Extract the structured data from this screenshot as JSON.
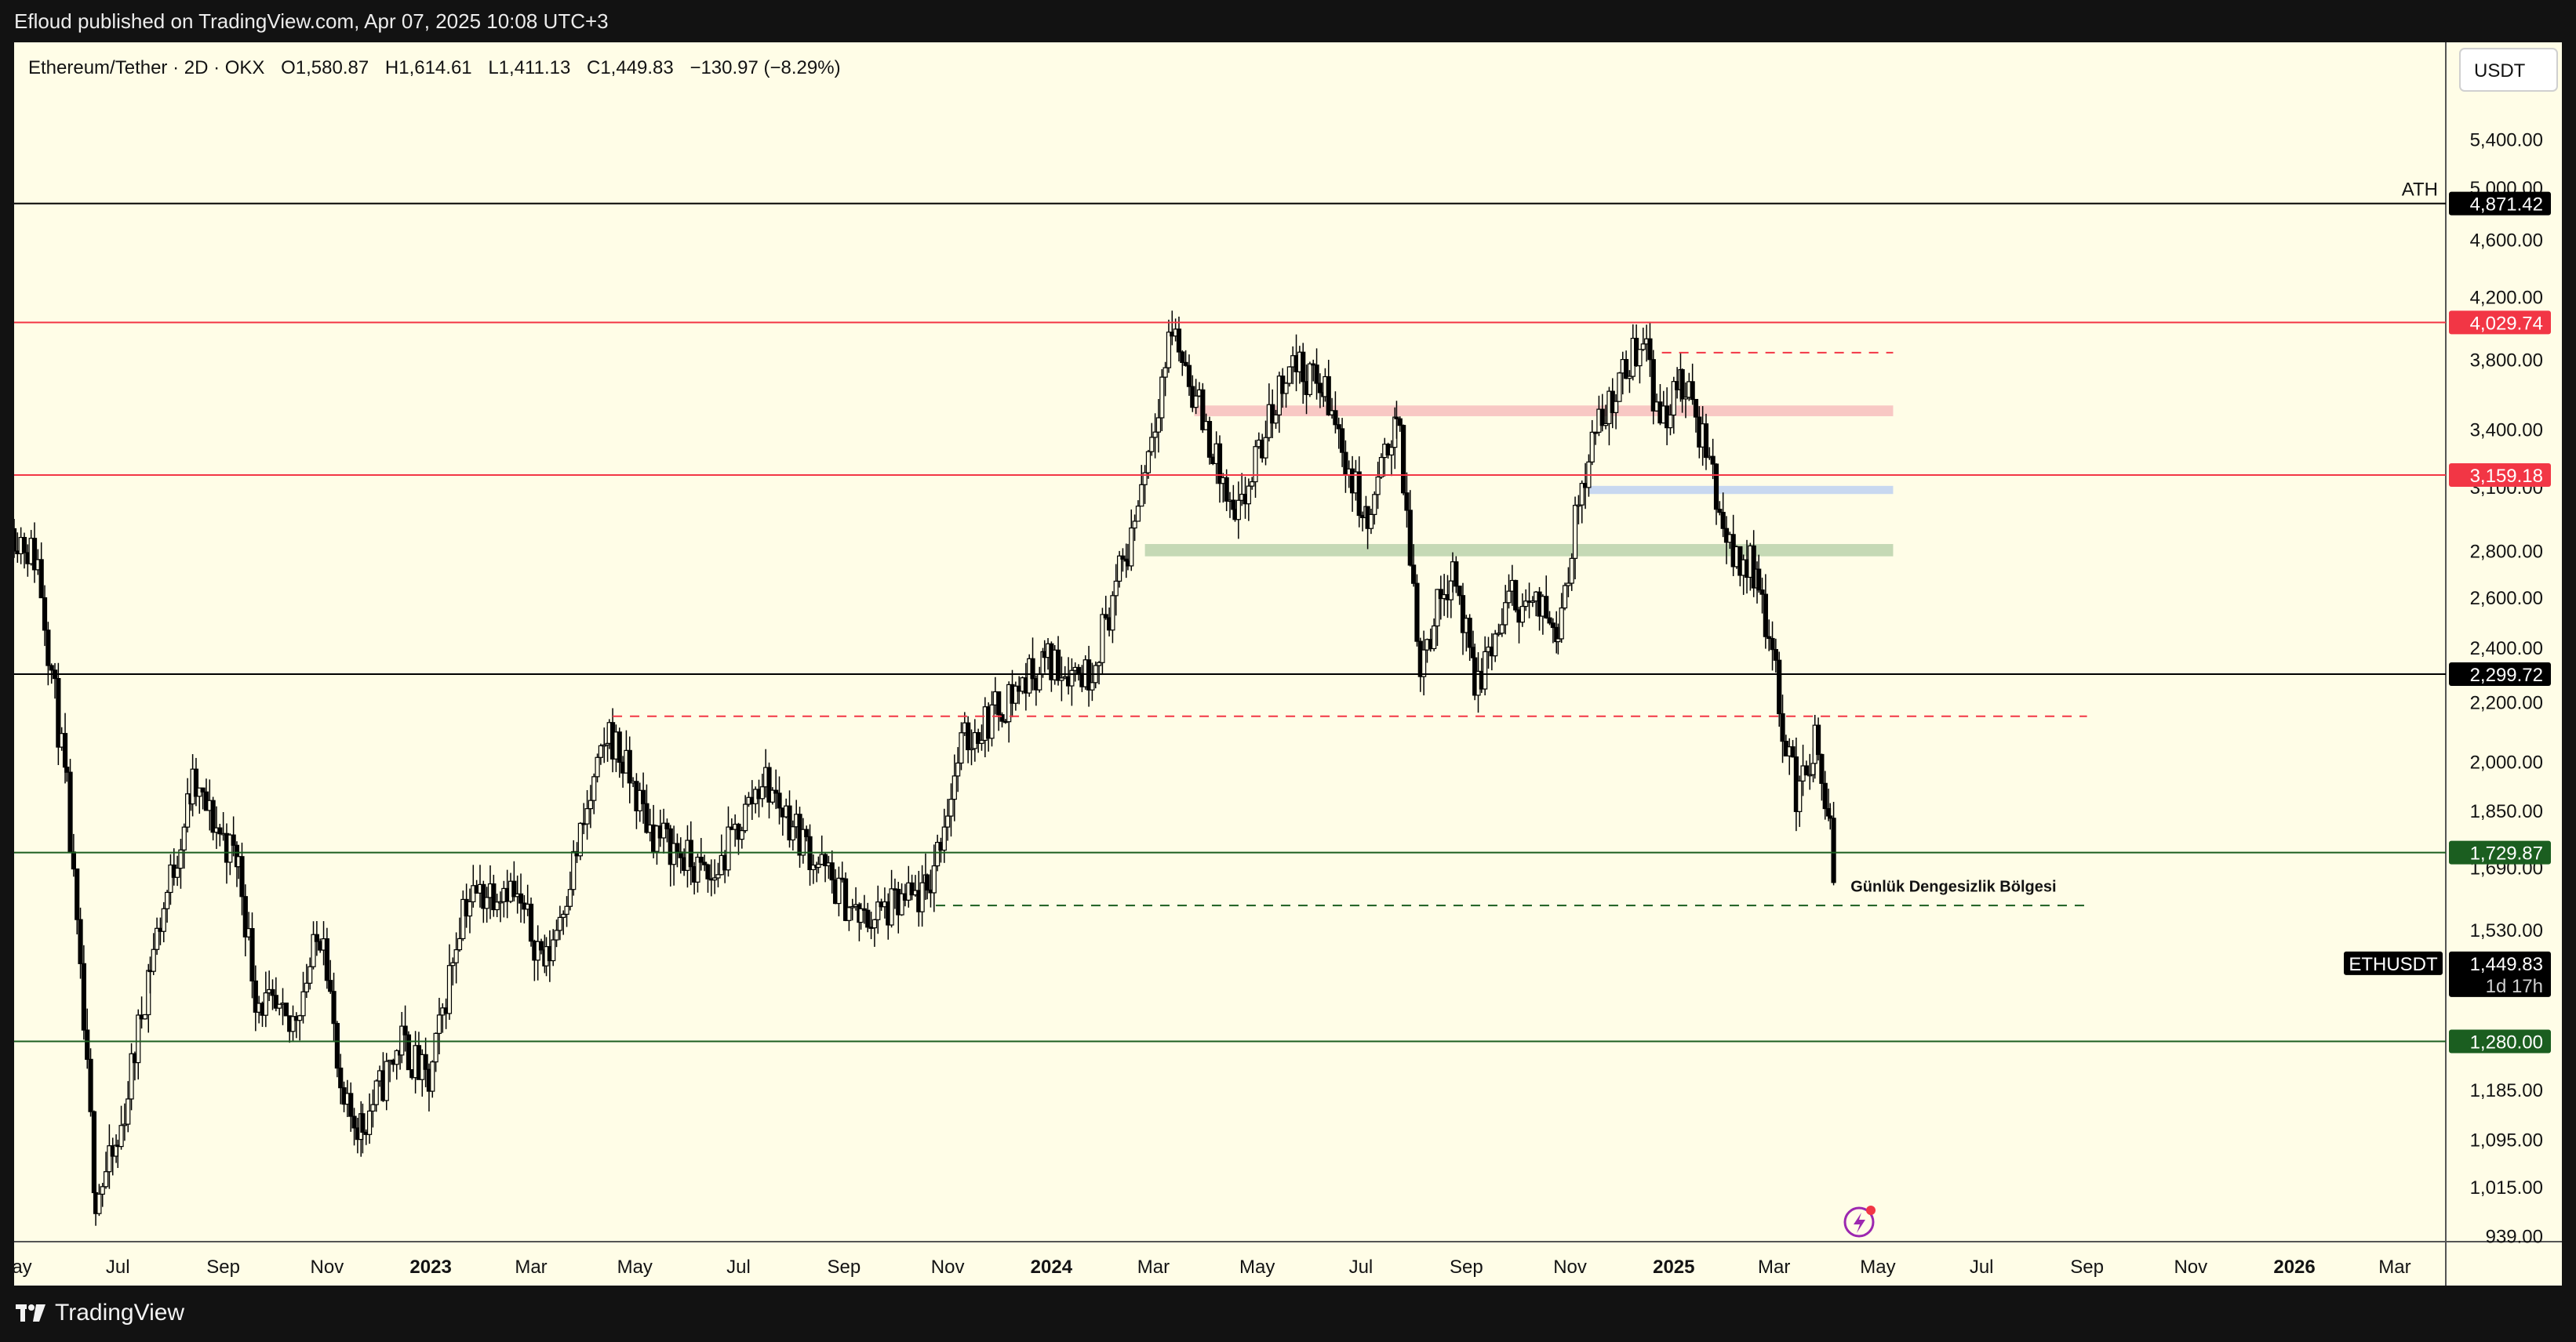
{
  "header": {
    "published": "Efloud published on TradingView.com, Apr 07, 2025 10:08 UTC+3"
  },
  "symbol_bar": {
    "symbol": "Ethereum/Tether · 2D · OKX",
    "open": "O1,580.87",
    "high": "H1,614.61",
    "low": "L1,411.13",
    "close": "C1,449.83",
    "change": "−130.97 (−8.29%)"
  },
  "footer": {
    "brand": "TradingView"
  },
  "colors": {
    "background": "#fffde7",
    "candle": "#000000",
    "red_level": "#f23645",
    "green_level": "#1b5e20",
    "black_level": "#000000",
    "pink_zone": "#f8c8c4",
    "blue_zone": "#c8d8f0",
    "green_zone": "#c5d9b5"
  },
  "chart_data": {
    "type": "candlestick",
    "title": "Ethereum/Tether · 2D · OKX",
    "currency": "USDT",
    "y_scale": "log",
    "ylim": [
      930,
      6300
    ],
    "xlim": [
      "2022-05-01",
      "2026-03-31"
    ],
    "y_ticks": [
      "5,400.00",
      "5,000.00",
      "4,600.00",
      "4,200.00",
      "3,800.00",
      "3,400.00",
      "3,100.00",
      "2,800.00",
      "2,600.00",
      "2,400.00",
      "2,200.00",
      "2,000.00",
      "1,850.00",
      "1,690.00",
      "1,530.00",
      "1,185.00",
      "1,095.00",
      "1,015.00",
      "939.00"
    ],
    "x_ticks": [
      {
        "date": "2022-05-01",
        "label": "May",
        "bold": false
      },
      {
        "date": "2022-07-01",
        "label": "Jul",
        "bold": false
      },
      {
        "date": "2022-09-01",
        "label": "Sep",
        "bold": false
      },
      {
        "date": "2022-11-01",
        "label": "Nov",
        "bold": false
      },
      {
        "date": "2023-01-01",
        "label": "2023",
        "bold": true
      },
      {
        "date": "2023-03-01",
        "label": "Mar",
        "bold": false
      },
      {
        "date": "2023-05-01",
        "label": "May",
        "bold": false
      },
      {
        "date": "2023-07-01",
        "label": "Jul",
        "bold": false
      },
      {
        "date": "2023-09-01",
        "label": "Sep",
        "bold": false
      },
      {
        "date": "2023-11-01",
        "label": "Nov",
        "bold": false
      },
      {
        "date": "2024-01-01",
        "label": "2024",
        "bold": true
      },
      {
        "date": "2024-03-01",
        "label": "Mar",
        "bold": false
      },
      {
        "date": "2024-05-01",
        "label": "May",
        "bold": false
      },
      {
        "date": "2024-07-01",
        "label": "Jul",
        "bold": false
      },
      {
        "date": "2024-09-01",
        "label": "Sep",
        "bold": false
      },
      {
        "date": "2024-11-01",
        "label": "Nov",
        "bold": false
      },
      {
        "date": "2025-01-01",
        "label": "2025",
        "bold": true
      },
      {
        "date": "2025-03-01",
        "label": "Mar",
        "bold": false
      },
      {
        "date": "2025-05-01",
        "label": "May",
        "bold": false
      },
      {
        "date": "2025-07-01",
        "label": "Jul",
        "bold": false
      },
      {
        "date": "2025-09-01",
        "label": "Sep",
        "bold": false
      },
      {
        "date": "2025-11-01",
        "label": "Nov",
        "bold": false
      },
      {
        "date": "2026-01-01",
        "label": "2026",
        "bold": true
      },
      {
        "date": "2026-03-01",
        "label": "Mar",
        "bold": false
      }
    ],
    "levels": [
      {
        "name": "ath",
        "value": 4871.42,
        "label": "4,871.42",
        "color": "#000000",
        "note": "ATH"
      },
      {
        "name": "red-high",
        "value": 4029.74,
        "label": "4,029.74",
        "color": "#f23645"
      },
      {
        "name": "red-mid",
        "value": 3159.18,
        "label": "3,159.18",
        "color": "#f23645"
      },
      {
        "name": "black-mid",
        "value": 2299.72,
        "label": "2,299.72",
        "color": "#000000"
      },
      {
        "name": "green-upper",
        "value": 1729.87,
        "label": "1,729.87",
        "color": "#1b5e20"
      },
      {
        "name": "green-lower",
        "value": 1280.0,
        "label": "1,280.00",
        "color": "#1b5e20"
      }
    ],
    "zones": [
      {
        "name": "pink-zone",
        "from": "2024-03-25",
        "to": "2025-05-10",
        "low": 3470,
        "high": 3530,
        "color": "#f8c8c4"
      },
      {
        "name": "blue-zone",
        "from": "2024-11-12",
        "to": "2025-05-10",
        "low": 3065,
        "high": 3105,
        "color": "#c8d8f0"
      },
      {
        "name": "green-zone",
        "from": "2024-02-25",
        "to": "2025-05-10",
        "low": 2775,
        "high": 2830,
        "color": "#c5d9b5"
      }
    ],
    "dashed_lines": [
      {
        "name": "red-dash-top",
        "from": "2024-12-25",
        "to": "2025-05-10",
        "value": 3840,
        "color": "#f23645"
      },
      {
        "name": "red-dash-2150",
        "from": "2023-04-18",
        "to": "2025-09-01",
        "value": 2150,
        "color": "#f23645"
      },
      {
        "name": "green-dash-1590",
        "from": "2023-10-25",
        "to": "2025-09-01",
        "value": 1590,
        "color": "#1b5e20"
      }
    ],
    "annotation": {
      "text": "Günlük Dengesizlik Bölgesi",
      "date": "2025-04-15",
      "value": 1625
    },
    "current": {
      "symbol": "ETHUSDT",
      "price": 1449.83,
      "price_label": "1,449.83",
      "countdown": "1d 17h"
    },
    "anchors": [
      [
        "2022-05-01",
        2900
      ],
      [
        "2022-05-15",
        2750
      ],
      [
        "2022-06-01",
        1900
      ],
      [
        "2022-06-18",
        1000
      ],
      [
        "2022-07-01",
        1080
      ],
      [
        "2022-07-20",
        1450
      ],
      [
        "2022-08-14",
        1920
      ],
      [
        "2022-09-10",
        1700
      ],
      [
        "2022-09-20",
        1380
      ],
      [
        "2022-10-10",
        1300
      ],
      [
        "2022-10-30",
        1550
      ],
      [
        "2022-11-09",
        1150
      ],
      [
        "2022-11-22",
        1120
      ],
      [
        "2022-12-15",
        1280
      ],
      [
        "2022-12-31",
        1190
      ],
      [
        "2023-01-20",
        1600
      ],
      [
        "2023-02-15",
        1650
      ],
      [
        "2023-03-10",
        1450
      ],
      [
        "2023-04-16",
        2100
      ],
      [
        "2023-05-10",
        1800
      ],
      [
        "2023-06-15",
        1650
      ],
      [
        "2023-07-15",
        1950
      ],
      [
        "2023-08-17",
        1700
      ],
      [
        "2023-09-11",
        1550
      ],
      [
        "2023-10-20",
        1620
      ],
      [
        "2023-11-09",
        2050
      ],
      [
        "2023-12-28",
        2350
      ],
      [
        "2024-01-23",
        2300
      ],
      [
        "2024-02-15",
        2800
      ],
      [
        "2024-03-12",
        4000
      ],
      [
        "2024-04-01",
        3400
      ],
      [
        "2024-04-18",
        2900
      ],
      [
        "2024-05-20",
        3800
      ],
      [
        "2024-06-10",
        3600
      ],
      [
        "2024-07-05",
        2900
      ],
      [
        "2024-07-22",
        3500
      ],
      [
        "2024-08-05",
        2350
      ],
      [
        "2024-08-24",
        2750
      ],
      [
        "2024-09-06",
        2250
      ],
      [
        "2024-09-28",
        2600
      ],
      [
        "2024-10-25",
        2500
      ],
      [
        "2024-11-12",
        3300
      ],
      [
        "2024-12-16",
        4000
      ],
      [
        "2024-12-22",
        3450
      ],
      [
        "2025-01-06",
        3650
      ],
      [
        "2025-01-20",
        3300
      ],
      [
        "2025-02-03",
        2800
      ],
      [
        "2025-02-20",
        2700
      ],
      [
        "2025-03-04",
        2200
      ],
      [
        "2025-03-14",
        1900
      ],
      [
        "2025-03-25",
        2050
      ],
      [
        "2025-04-03",
        1800
      ],
      [
        "2025-04-07",
        1449.83
      ]
    ]
  }
}
